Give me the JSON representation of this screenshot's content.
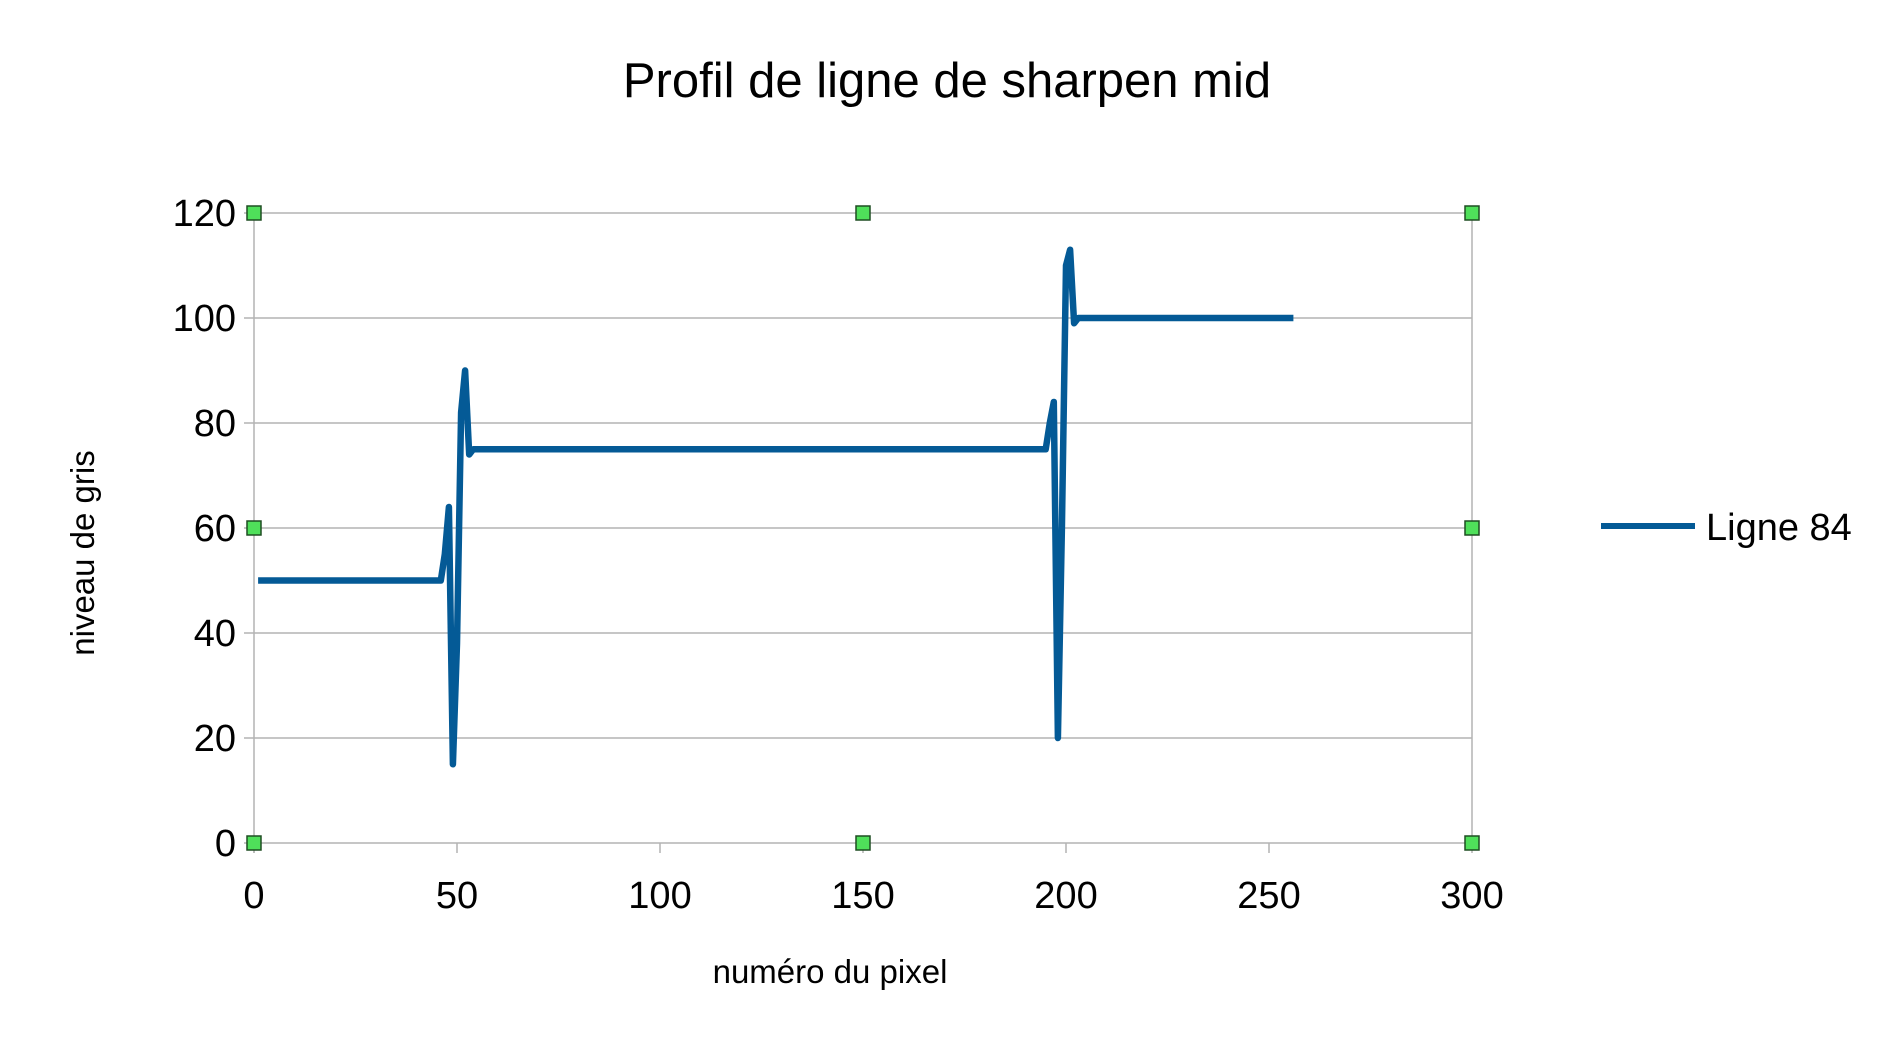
{
  "chart_data": {
    "type": "line",
    "title": "Profil de ligne de sharpen mid",
    "xlabel": "numéro du pixel",
    "ylabel": "niveau de gris",
    "xlim": [
      0,
      300
    ],
    "ylim": [
      0,
      120
    ],
    "x_ticks": [
      0,
      50,
      100,
      150,
      200,
      250,
      300
    ],
    "y_ticks": [
      0,
      20,
      40,
      60,
      80,
      100,
      120
    ],
    "grid": "horizontal",
    "legend_position": "right",
    "series": [
      {
        "name": "Ligne 84",
        "color": "#045a96",
        "points": [
          [
            1,
            50
          ],
          [
            46,
            50
          ],
          [
            47,
            55
          ],
          [
            48,
            64
          ],
          [
            49,
            15
          ],
          [
            50,
            38
          ],
          [
            51,
            82
          ],
          [
            52,
            90
          ],
          [
            53,
            74
          ],
          [
            54,
            75
          ],
          [
            195,
            75
          ],
          [
            196,
            80
          ],
          [
            197,
            84
          ],
          [
            198,
            20
          ],
          [
            199,
            60
          ],
          [
            200,
            110
          ],
          [
            201,
            113
          ],
          [
            202,
            99
          ],
          [
            203,
            100
          ],
          [
            256,
            100
          ]
        ]
      }
    ],
    "markers": {
      "color": "#4fe05a",
      "points": [
        [
          0,
          0
        ],
        [
          150,
          0
        ],
        [
          300,
          0
        ],
        [
          0,
          60
        ],
        [
          300,
          60
        ],
        [
          0,
          120
        ],
        [
          150,
          120
        ],
        [
          300,
          120
        ]
      ]
    }
  }
}
